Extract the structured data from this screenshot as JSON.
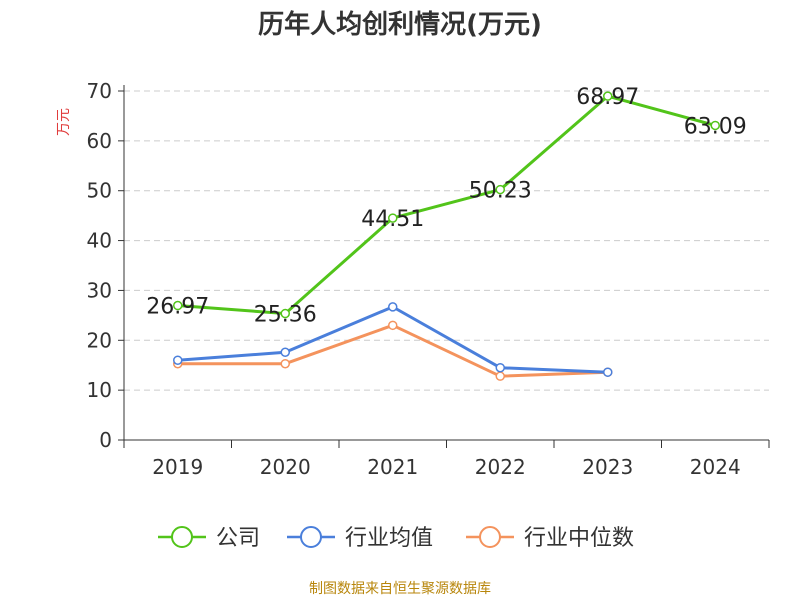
{
  "chart_data": {
    "type": "line",
    "title": "历年人均创利情况(万元)",
    "ylabel": "万元",
    "xlabel": "",
    "categories": [
      "2019",
      "2020",
      "2021",
      "2022",
      "2023",
      "2024"
    ],
    "y_ticks": [
      "0",
      "10",
      "20",
      "30",
      "40",
      "50",
      "60",
      "70"
    ],
    "ylim": [
      0,
      70
    ],
    "grid": true,
    "legend_position": "bottom",
    "series": [
      {
        "name": "公司",
        "color": "#52c41a",
        "values": [
          26.97,
          25.36,
          44.51,
          50.23,
          68.97,
          63.09
        ],
        "labels": [
          "26.97",
          "25.36",
          "44.51",
          "50.23",
          "68.97",
          "63.09"
        ]
      },
      {
        "name": "行业均值",
        "color": "#4a7fdb",
        "values": [
          16.0,
          17.6,
          26.7,
          14.5,
          13.6,
          null
        ]
      },
      {
        "name": "行业中位数",
        "color": "#f4935d",
        "values": [
          15.3,
          15.3,
          23.0,
          12.8,
          13.6,
          null
        ]
      }
    ]
  },
  "footer": {
    "source": "制图数据来自恒生聚源数据库"
  }
}
